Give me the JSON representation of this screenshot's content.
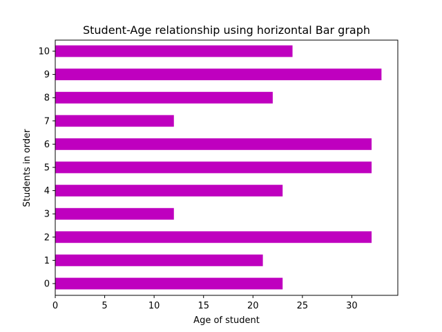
{
  "chart_data": {
    "type": "bar",
    "orientation": "horizontal",
    "title": "Student-Age relationship using horizontal Bar graph",
    "xlabel": "Age of student",
    "ylabel": "Students in order",
    "categories": [
      "0",
      "1",
      "2",
      "3",
      "4",
      "5",
      "6",
      "7",
      "8",
      "9",
      "10"
    ],
    "values": [
      23,
      21,
      32,
      12,
      23,
      32,
      32,
      12,
      22,
      33,
      24
    ],
    "xlim": [
      0,
      34.65
    ],
    "xticks": [
      "0",
      "5",
      "10",
      "15",
      "20",
      "25",
      "30"
    ],
    "bar_color": "#bf00bf",
    "grid": false,
    "legend": "none"
  }
}
